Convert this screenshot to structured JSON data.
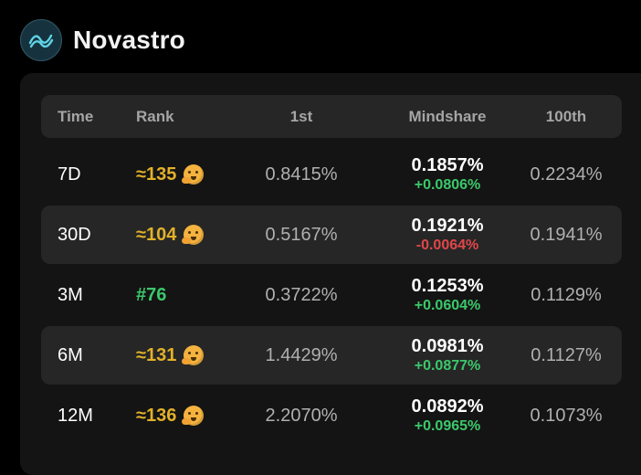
{
  "app": {
    "title": "Novastro",
    "logo_icon": "wave-logo-icon"
  },
  "table": {
    "headers": {
      "time": "Time",
      "rank": "Rank",
      "first": "1st",
      "mindshare": "Mindshare",
      "hundredth": "100th"
    },
    "rows": [
      {
        "time": "7D",
        "rank": "≈135",
        "rank_type": "approx",
        "rank_icon": "thinking-face-icon",
        "first": "0.8415%",
        "mindshare": "0.1857%",
        "change": "+0.0806%",
        "change_dir": "pos",
        "hundredth": "0.2234%"
      },
      {
        "time": "30D",
        "rank": "≈104",
        "rank_type": "approx",
        "rank_icon": "thinking-face-icon",
        "first": "0.5167%",
        "mindshare": "0.1921%",
        "change": "-0.0064%",
        "change_dir": "neg",
        "hundredth": "0.1941%"
      },
      {
        "time": "3M",
        "rank": "#76",
        "rank_type": "exact",
        "rank_icon": "",
        "first": "0.3722%",
        "mindshare": "0.1253%",
        "change": "+0.0604%",
        "change_dir": "pos",
        "hundredth": "0.1129%"
      },
      {
        "time": "6M",
        "rank": "≈131",
        "rank_type": "approx",
        "rank_icon": "thinking-face-icon",
        "first": "1.4429%",
        "mindshare": "0.0981%",
        "change": "+0.0877%",
        "change_dir": "pos",
        "hundredth": "0.1127%"
      },
      {
        "time": "12M",
        "rank": "≈136",
        "rank_type": "approx",
        "rank_icon": "thinking-face-icon",
        "first": "2.2070%",
        "mindshare": "0.0892%",
        "change": "+0.0965%",
        "change_dir": "pos",
        "hundredth": "0.1073%"
      }
    ]
  },
  "colors": {
    "background": "#000000",
    "card": "#141414",
    "row_alt": "#262626",
    "approx_rank": "#e2b12a",
    "exact_rank": "#3bc86b",
    "positive": "#3bc86b",
    "negative": "#e0464a"
  }
}
